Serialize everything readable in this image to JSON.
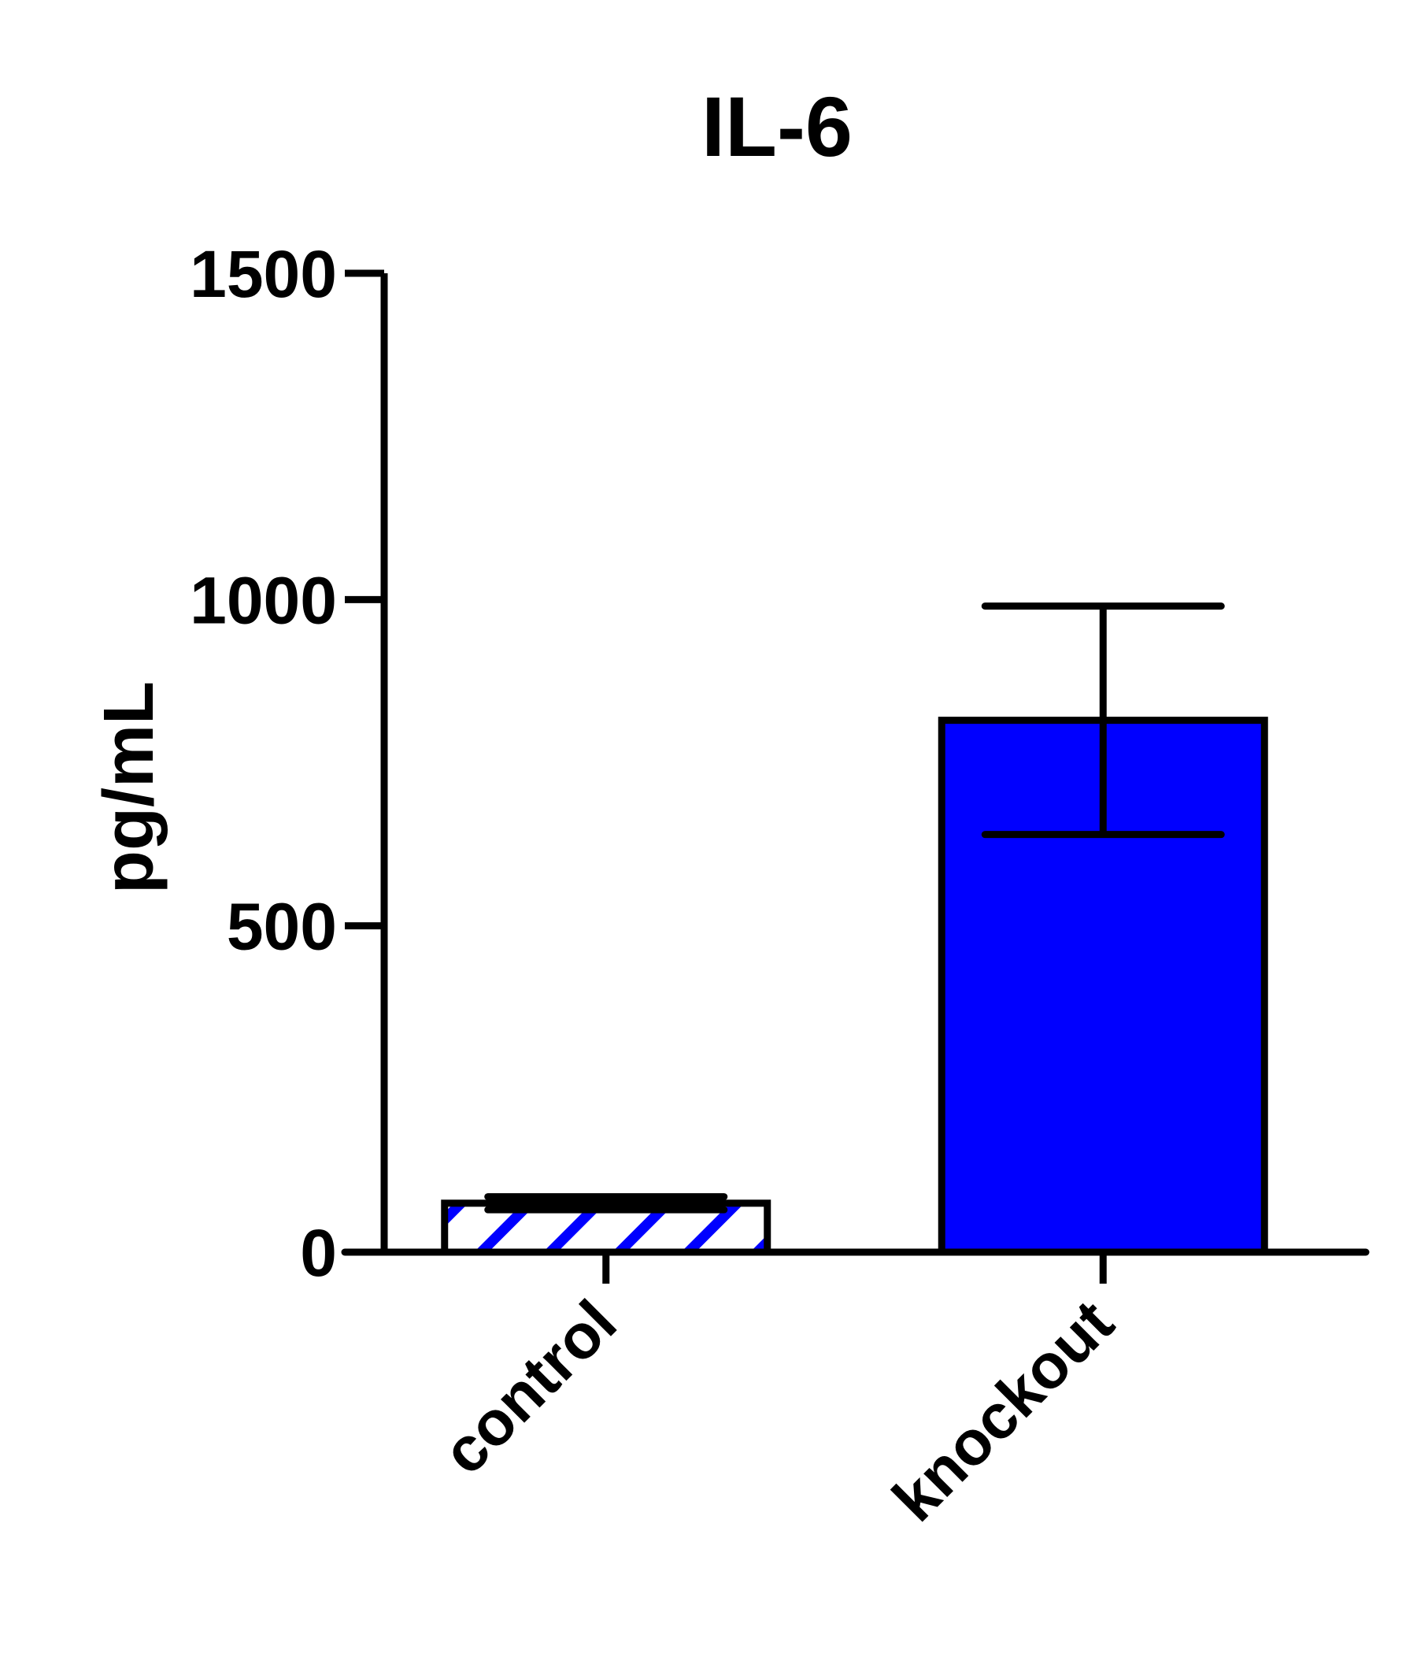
{
  "chart_data": {
    "type": "bar",
    "title": "IL-6",
    "xlabel": "",
    "ylabel": "pg/mL",
    "ylim": [
      0,
      1500
    ],
    "yticks": [
      0,
      500,
      1000,
      1500
    ],
    "categories": [
      "control",
      "knockout"
    ],
    "values": [
      75,
      815
    ],
    "errors": [
      10,
      175
    ],
    "fills": [
      "hatched",
      "solid"
    ],
    "colors": {
      "bar": "#0000ff",
      "hatch": "#0000ff",
      "axis": "#000000",
      "background": "#ffffff"
    },
    "grid": false,
    "legend": "none"
  }
}
